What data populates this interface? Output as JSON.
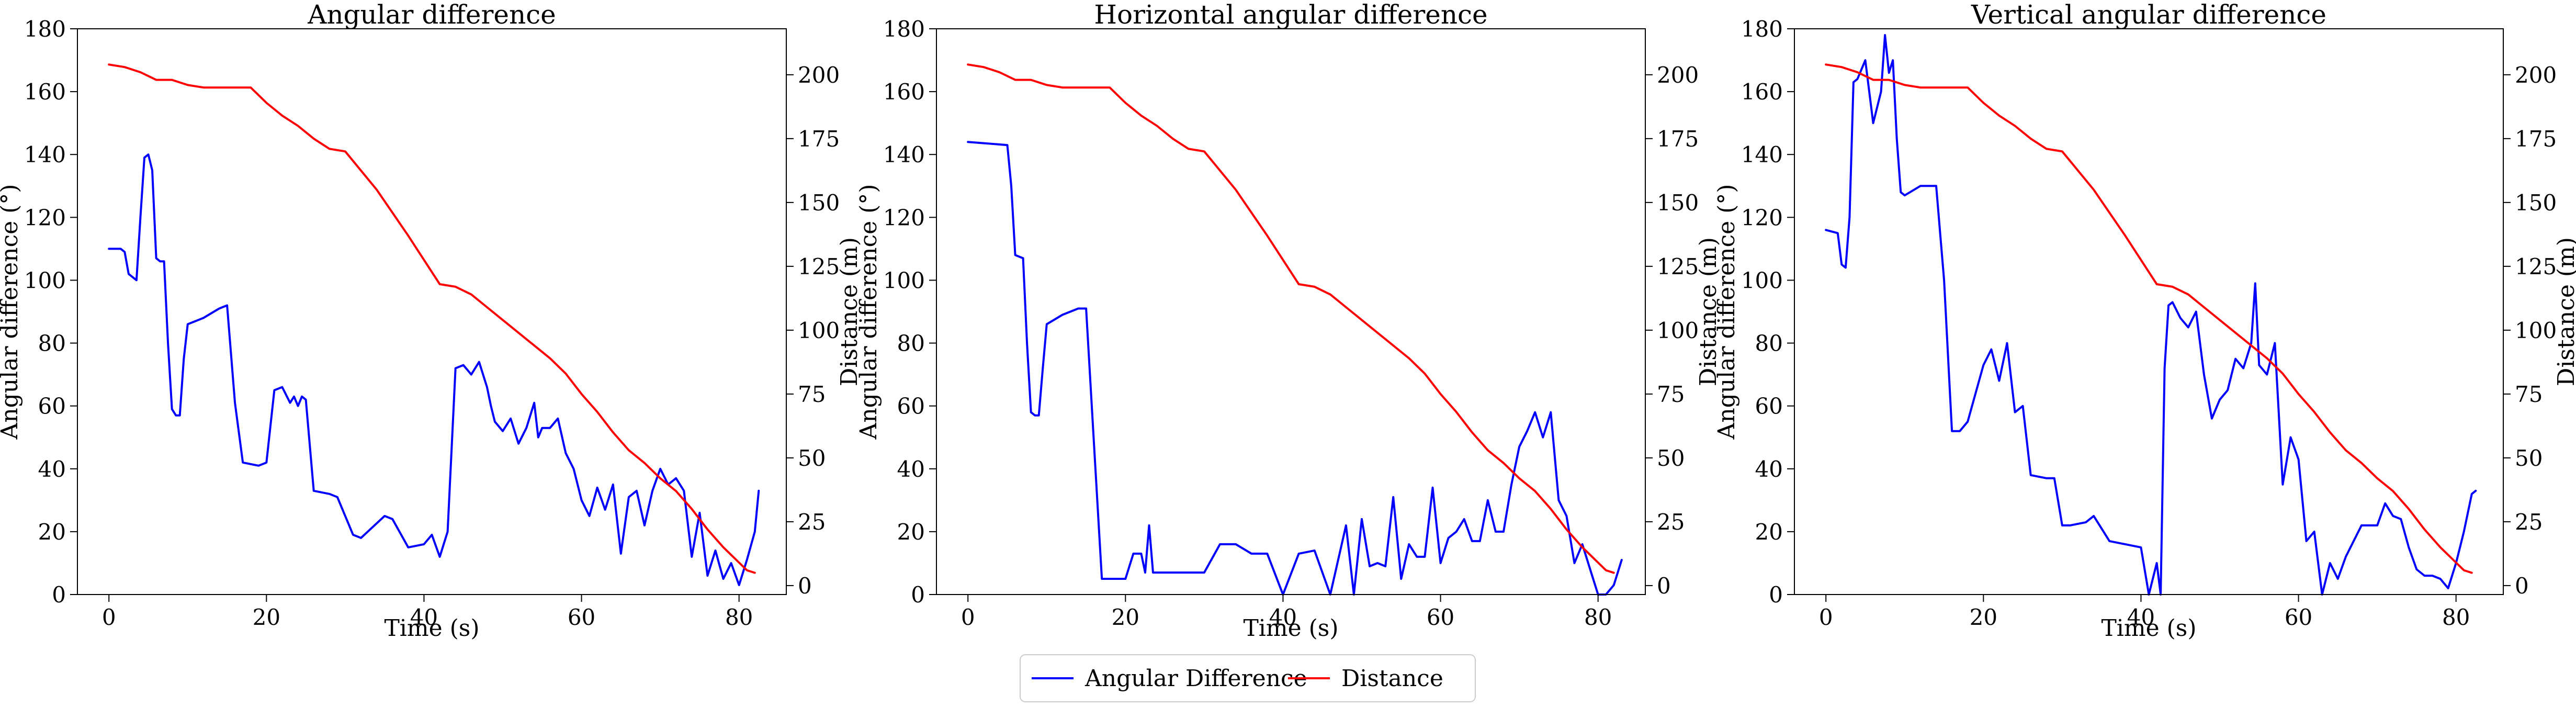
{
  "figure": {
    "legend": {
      "placement": "bottom-center",
      "entries": [
        {
          "label": "Angular Difference",
          "color": "#0000ff"
        },
        {
          "label": "Distance",
          "color": "#ff0000"
        }
      ]
    }
  },
  "chart_data": [
    {
      "type": "line",
      "title": "Angular difference",
      "xlabel": "Time (s)",
      "ylabel": "Angular difference (°)",
      "y2label": "Distance (m)",
      "xlim": [
        -4,
        86
      ],
      "ylim": [
        0,
        180
      ],
      "y2lim": [
        -3.5,
        218
      ],
      "xticks": [
        0,
        20,
        40,
        60,
        80
      ],
      "yticks": [
        0,
        20,
        40,
        60,
        80,
        100,
        120,
        140,
        160,
        180
      ],
      "y2ticks": [
        0,
        25,
        50,
        75,
        100,
        125,
        150,
        175,
        200
      ],
      "grid": false,
      "series": [
        {
          "name": "Angular Difference",
          "axis": "left",
          "color": "#0000ff",
          "x": [
            0,
            1.5,
            2,
            2.5,
            3,
            3.5,
            4,
            4.5,
            5,
            5.5,
            6,
            6.5,
            7,
            7.5,
            8,
            8.5,
            9,
            9.5,
            10,
            12,
            14,
            15,
            16,
            17,
            19,
            20,
            21,
            22,
            23,
            23.5,
            24,
            24.5,
            25,
            26,
            28,
            29,
            31,
            32,
            35,
            36,
            38,
            40,
            41,
            42,
            43,
            44,
            45,
            46,
            47,
            48,
            48.5,
            49,
            50,
            51,
            52,
            53,
            54,
            54.5,
            55,
            56,
            57,
            58,
            59,
            60,
            61,
            62,
            63,
            64,
            65,
            66,
            67,
            68,
            69,
            70,
            71,
            72,
            73,
            74,
            75,
            76,
            77,
            78,
            79,
            80,
            81,
            82,
            82.5
          ],
          "y": [
            110,
            110,
            109,
            102,
            101,
            100,
            120,
            139,
            140,
            135,
            107,
            106,
            106,
            80,
            59,
            57,
            57,
            75,
            86,
            88,
            91,
            92,
            61,
            42,
            41,
            42,
            65,
            66,
            61,
            63,
            60,
            63,
            62,
            33,
            32,
            31,
            19,
            18,
            25,
            24,
            15,
            16,
            19,
            12,
            20,
            72,
            73,
            70,
            74,
            66,
            60,
            55,
            52,
            56,
            48,
            53,
            61,
            50,
            53,
            53,
            56,
            45,
            40,
            30,
            25,
            34,
            27,
            35,
            13,
            31,
            33,
            22,
            33,
            40,
            35,
            37,
            33,
            12,
            26,
            6,
            14,
            5,
            10,
            3,
            11,
            20,
            33
          ]
        },
        {
          "name": "Distance",
          "axis": "right",
          "color": "#ff0000",
          "x": [
            0,
            2,
            4,
            6,
            8,
            10,
            12,
            14,
            16,
            18,
            20,
            22,
            24,
            26,
            28,
            30,
            34,
            38,
            42,
            44,
            46,
            48,
            50,
            52,
            54,
            56,
            58,
            60,
            62,
            64,
            66,
            68,
            70,
            72,
            74,
            76,
            78,
            80,
            81,
            82
          ],
          "y": [
            204,
            203,
            201,
            198,
            198,
            196,
            195,
            195,
            195,
            195,
            189,
            184,
            180,
            175,
            171,
            170,
            155,
            137,
            118,
            117,
            114,
            109,
            104,
            99,
            94,
            89,
            83,
            75,
            68,
            60,
            53,
            48,
            42,
            37,
            30,
            22,
            15,
            9,
            6,
            5
          ]
        }
      ]
    },
    {
      "type": "line",
      "title": "Horizontal angular difference",
      "xlabel": "Time (s)",
      "ylabel": "Angular difference (°)",
      "y2label": "Distance (m)",
      "xlim": [
        -4,
        86
      ],
      "ylim": [
        0,
        180
      ],
      "y2lim": [
        -3.5,
        218
      ],
      "xticks": [
        0,
        20,
        40,
        60,
        80
      ],
      "yticks": [
        0,
        20,
        40,
        60,
        80,
        100,
        120,
        140,
        160,
        180
      ],
      "y2ticks": [
        0,
        25,
        50,
        75,
        100,
        125,
        150,
        175,
        200
      ],
      "grid": false,
      "series": [
        {
          "name": "Angular Difference",
          "axis": "left",
          "color": "#0000ff",
          "x": [
            0,
            5,
            5.5,
            6,
            7,
            7.5,
            8,
            8.5,
            9,
            9.5,
            10,
            12,
            14,
            15,
            16,
            17,
            18,
            20,
            21,
            22,
            22.5,
            23,
            23.5,
            24,
            28,
            30,
            32,
            34,
            36,
            38,
            40,
            42,
            44,
            46,
            48,
            49,
            50,
            51,
            52,
            53,
            54,
            55,
            56,
            57,
            58,
            59,
            60,
            61,
            62,
            63,
            64,
            65,
            66,
            67,
            68,
            69,
            70,
            71,
            72,
            73,
            74,
            75,
            76,
            77,
            78,
            79,
            80,
            81,
            82,
            83
          ],
          "y": [
            144,
            143,
            130,
            108,
            107,
            80,
            58,
            57,
            57,
            72,
            86,
            89,
            91,
            91,
            48,
            5,
            5,
            5,
            13,
            13,
            7,
            22,
            7,
            7,
            7,
            7,
            16,
            16,
            13,
            13,
            0,
            13,
            14,
            0,
            22,
            0,
            24,
            9,
            10,
            9,
            31,
            5,
            16,
            12,
            12,
            34,
            10,
            18,
            20,
            24,
            17,
            17,
            30,
            20,
            20,
            35,
            47,
            52,
            58,
            50,
            58,
            30,
            25,
            10,
            16,
            8,
            0,
            0,
            3,
            11
          ]
        },
        {
          "name": "Distance",
          "axis": "right",
          "color": "#ff0000",
          "x": [
            0,
            2,
            4,
            6,
            8,
            10,
            12,
            14,
            16,
            18,
            20,
            22,
            24,
            26,
            28,
            30,
            34,
            38,
            42,
            44,
            46,
            48,
            50,
            52,
            54,
            56,
            58,
            60,
            62,
            64,
            66,
            68,
            70,
            72,
            74,
            76,
            78,
            80,
            81,
            82
          ],
          "y": [
            204,
            203,
            201,
            198,
            198,
            196,
            195,
            195,
            195,
            195,
            189,
            184,
            180,
            175,
            171,
            170,
            155,
            137,
            118,
            117,
            114,
            109,
            104,
            99,
            94,
            89,
            83,
            75,
            68,
            60,
            53,
            48,
            42,
            37,
            30,
            22,
            15,
            9,
            6,
            5
          ]
        }
      ]
    },
    {
      "type": "line",
      "title": "Vertical angular difference",
      "xlabel": "Time (s)",
      "ylabel": "Angular difference (°)",
      "y2label": "Distance (m)",
      "xlim": [
        -4,
        86
      ],
      "ylim": [
        0,
        180
      ],
      "y2lim": [
        -3.5,
        218
      ],
      "xticks": [
        0,
        20,
        40,
        60,
        80
      ],
      "yticks": [
        0,
        20,
        40,
        60,
        80,
        100,
        120,
        140,
        160,
        180
      ],
      "y2ticks": [
        0,
        25,
        50,
        75,
        100,
        125,
        150,
        175,
        200
      ],
      "grid": false,
      "series": [
        {
          "name": "Angular Difference",
          "axis": "left",
          "color": "#0000ff",
          "x": [
            0,
            1.5,
            2,
            2.5,
            3,
            3.5,
            4,
            5,
            6,
            6.5,
            7,
            7.5,
            8,
            8.5,
            9,
            9.5,
            10,
            12,
            14,
            15,
            16,
            17,
            18,
            20,
            21,
            22,
            23,
            24,
            25,
            26,
            28,
            29,
            30,
            31,
            33,
            34,
            36,
            38,
            40,
            41,
            42,
            42.5,
            43,
            43.5,
            44,
            45,
            46,
            47,
            48,
            49,
            50,
            51,
            52,
            53,
            54,
            54.5,
            55,
            56,
            57,
            58,
            59,
            60,
            61,
            62,
            63,
            64,
            65,
            66,
            68,
            70,
            71,
            72,
            73,
            74,
            75,
            76,
            77,
            78,
            79,
            80,
            81,
            82,
            82.5
          ],
          "y": [
            116,
            115,
            105,
            104,
            120,
            163,
            164,
            170,
            150,
            155,
            160,
            178,
            166,
            170,
            145,
            128,
            127,
            130,
            130,
            100,
            52,
            52,
            55,
            73,
            78,
            68,
            80,
            58,
            60,
            38,
            37,
            37,
            22,
            22,
            23,
            25,
            17,
            16,
            15,
            0,
            10,
            0,
            72,
            92,
            93,
            88,
            85,
            90,
            70,
            56,
            62,
            65,
            75,
            72,
            80,
            99,
            73,
            70,
            80,
            35,
            50,
            43,
            17,
            20,
            0,
            10,
            5,
            12,
            22,
            22,
            29,
            25,
            24,
            15,
            8,
            6,
            6,
            5,
            2,
            10,
            20,
            32,
            33
          ]
        },
        {
          "name": "Distance",
          "axis": "right",
          "color": "#ff0000",
          "x": [
            0,
            2,
            4,
            6,
            8,
            10,
            12,
            14,
            16,
            18,
            20,
            22,
            24,
            26,
            28,
            30,
            34,
            38,
            42,
            44,
            46,
            48,
            50,
            52,
            54,
            56,
            58,
            60,
            62,
            64,
            66,
            68,
            70,
            72,
            74,
            76,
            78,
            80,
            81,
            82
          ],
          "y": [
            204,
            203,
            201,
            198,
            198,
            196,
            195,
            195,
            195,
            195,
            189,
            184,
            180,
            175,
            171,
            170,
            155,
            137,
            118,
            117,
            114,
            109,
            104,
            99,
            94,
            89,
            83,
            75,
            68,
            60,
            53,
            48,
            42,
            37,
            30,
            22,
            15,
            9,
            6,
            5
          ]
        }
      ]
    }
  ]
}
